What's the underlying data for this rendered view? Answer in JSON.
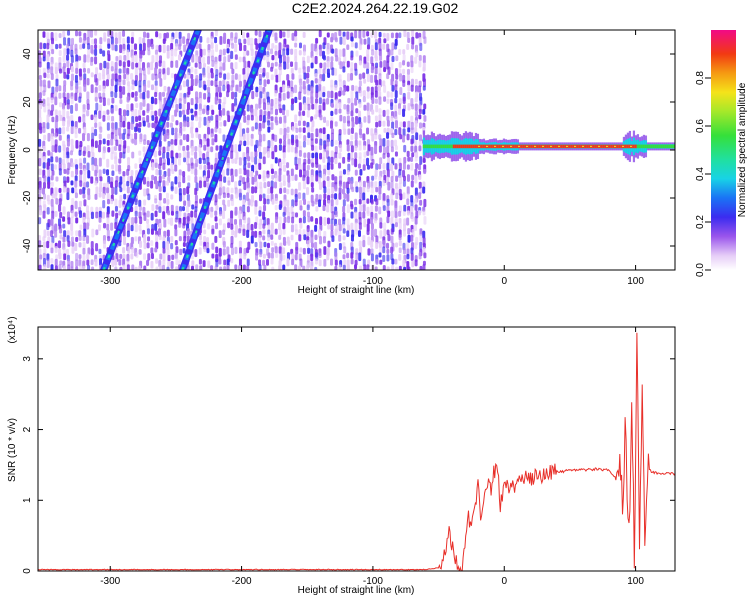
{
  "figure": {
    "title": "C2E2.2024.264.22.19.G02"
  },
  "colors": {
    "snr_line": "#e8302a",
    "colormap": [
      "#ffffff",
      "#e6cdf7",
      "#b383f0",
      "#7b2fe6",
      "#3b2cf0",
      "#1a73f5",
      "#18d3e6",
      "#20e0a0",
      "#35e03a",
      "#a5e82a",
      "#f5e31a",
      "#f59a12",
      "#f23a12",
      "#e8134f",
      "#f20a86"
    ]
  },
  "chart_data": [
    {
      "type": "heatmap",
      "title": "C2E2.2024.264.22.19.G02",
      "xlabel": "Height of straight line (km)",
      "ylabel": "Frequency (Hz)",
      "xlim": [
        -355,
        130
      ],
      "ylim": [
        -50,
        50
      ],
      "xticks": [
        -300,
        -200,
        -100,
        0,
        100
      ],
      "yticks": [
        -40,
        -20,
        0,
        20,
        40
      ],
      "colorbar": {
        "label": "Normalized spectral amplitude",
        "range": [
          0,
          1
        ],
        "ticks": [
          0.0,
          0.2,
          0.4,
          0.6,
          0.8
        ]
      },
      "regions": {
        "noise_field_x": [
          -355,
          -62
        ],
        "carrier_frequency_hz": 1.5,
        "carrier_x": [
          -62,
          130
        ],
        "streak_lines": [
          {
            "x": [
              -305,
              -233
            ],
            "y": [
              -50,
              50
            ]
          },
          {
            "x": [
              -245,
              -179
            ],
            "y": [
              -50,
              50
            ]
          }
        ]
      }
    },
    {
      "type": "line",
      "xlabel": "Height of straight line (km)",
      "ylabel": "SNR (10 * v/v)",
      "scale_label": "(x10⁴)",
      "xlim": [
        -355,
        130
      ],
      "ylim": [
        0,
        3.45
      ],
      "xticks": [
        -300,
        -200,
        -100,
        0,
        100
      ],
      "yticks": [
        0,
        1,
        2,
        3
      ],
      "series": [
        {
          "points": [
            [
              -355,
              0.02
            ],
            [
              -300,
              0.02
            ],
            [
              -200,
              0.02
            ],
            [
              -100,
              0.02
            ],
            [
              -60,
              0.02
            ],
            [
              -48,
              0.05
            ],
            [
              -45,
              0.3
            ],
            [
              -42,
              0.55
            ],
            [
              -40,
              0.4
            ],
            [
              -38,
              0.2
            ],
            [
              -35,
              0.1
            ],
            [
              -32,
              0.05
            ],
            [
              -30,
              0.45
            ],
            [
              -28,
              0.8
            ],
            [
              -25,
              0.6
            ],
            [
              -22,
              0.9
            ],
            [
              -20,
              1.2
            ],
            [
              -18,
              0.7
            ],
            [
              -15,
              1.0
            ],
            [
              -12,
              1.3
            ],
            [
              -10,
              1.1
            ],
            [
              -8,
              1.4
            ],
            [
              -5,
              1.5
            ],
            [
              -3,
              0.9
            ],
            [
              0,
              1.15
            ],
            [
              5,
              1.2
            ],
            [
              10,
              1.25
            ],
            [
              15,
              1.3
            ],
            [
              20,
              1.28
            ],
            [
              25,
              1.35
            ],
            [
              30,
              1.38
            ],
            [
              40,
              1.4
            ],
            [
              50,
              1.42
            ],
            [
              60,
              1.43
            ],
            [
              70,
              1.44
            ],
            [
              80,
              1.42
            ],
            [
              85,
              1.3
            ],
            [
              88,
              1.6
            ],
            [
              90,
              0.8
            ],
            [
              92,
              2.0
            ],
            [
              95,
              0.5
            ],
            [
              97,
              2.4
            ],
            [
              99,
              0.2
            ],
            [
              101,
              3.3
            ],
            [
              103,
              0.3
            ],
            [
              105,
              2.6
            ],
            [
              107,
              0.4
            ],
            [
              109,
              1.5
            ],
            [
              112,
              1.4
            ],
            [
              120,
              1.38
            ],
            [
              130,
              1.38
            ]
          ]
        }
      ]
    }
  ]
}
